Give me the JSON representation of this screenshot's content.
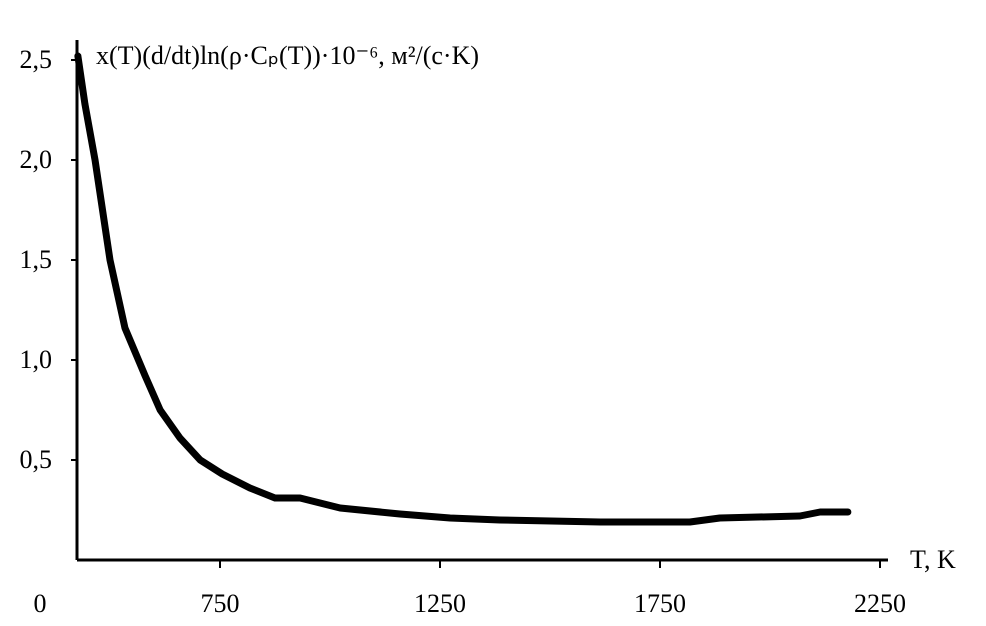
{
  "chart_data": {
    "type": "line",
    "title": "x(T)(d/dt)ln(ρ·Cₚ(T))·10⁻⁶,  м²/(с·K)",
    "x_label": "T, K",
    "x": [
      427,
      443,
      466,
      500,
      534,
      580,
      614,
      659,
      705,
      755,
      818,
      875,
      932,
      1023,
      1159,
      1273,
      1386,
      1614,
      1818,
      1886,
      2068,
      2114,
      2177
    ],
    "series": [
      {
        "color": "#000000",
        "values": [
          2.52,
          2.28,
          2.0,
          1.5,
          1.16,
          0.92,
          0.75,
          0.61,
          0.5,
          0.43,
          0.36,
          0.31,
          0.31,
          0.26,
          0.23,
          0.21,
          0.2,
          0.19,
          0.19,
          0.21,
          0.22,
          0.24,
          0.24
        ]
      }
    ],
    "xlim": [
      425,
      2250
    ],
    "xticks": [
      750,
      1250,
      1750,
      2250
    ],
    "ylim": [
      0,
      2.6
    ],
    "yticks": [
      {
        "value": 0,
        "label": "0"
      },
      {
        "value": 0.5,
        "label": "0,5"
      },
      {
        "value": 1.0,
        "label": "1,0"
      },
      {
        "value": 1.5,
        "label": "1,5"
      },
      {
        "value": 2.0,
        "label": "2,0"
      },
      {
        "value": 2.5,
        "label": "2,5"
      }
    ],
    "grid": false
  }
}
